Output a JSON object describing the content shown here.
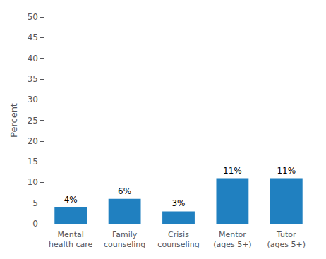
{
  "chart_data": {
    "type": "bar",
    "categories": [
      "Mental\nhealth care",
      "Family\ncounseling",
      "Crisis\ncounseling",
      "Mentor\n(ages 5+)",
      "Tutor\n(ages 5+)"
    ],
    "values": [
      4,
      6,
      3,
      11,
      11
    ],
    "value_labels": [
      "4%",
      "6%",
      "3%",
      "11%",
      "11%"
    ],
    "data_labels": true,
    "color": "#2080C0",
    "ylabel": "Percent",
    "ylim": [
      0,
      50
    ],
    "yticks": [
      0,
      5,
      10,
      15,
      20,
      25,
      30,
      35,
      40,
      45,
      50
    ],
    "grid": false
  }
}
